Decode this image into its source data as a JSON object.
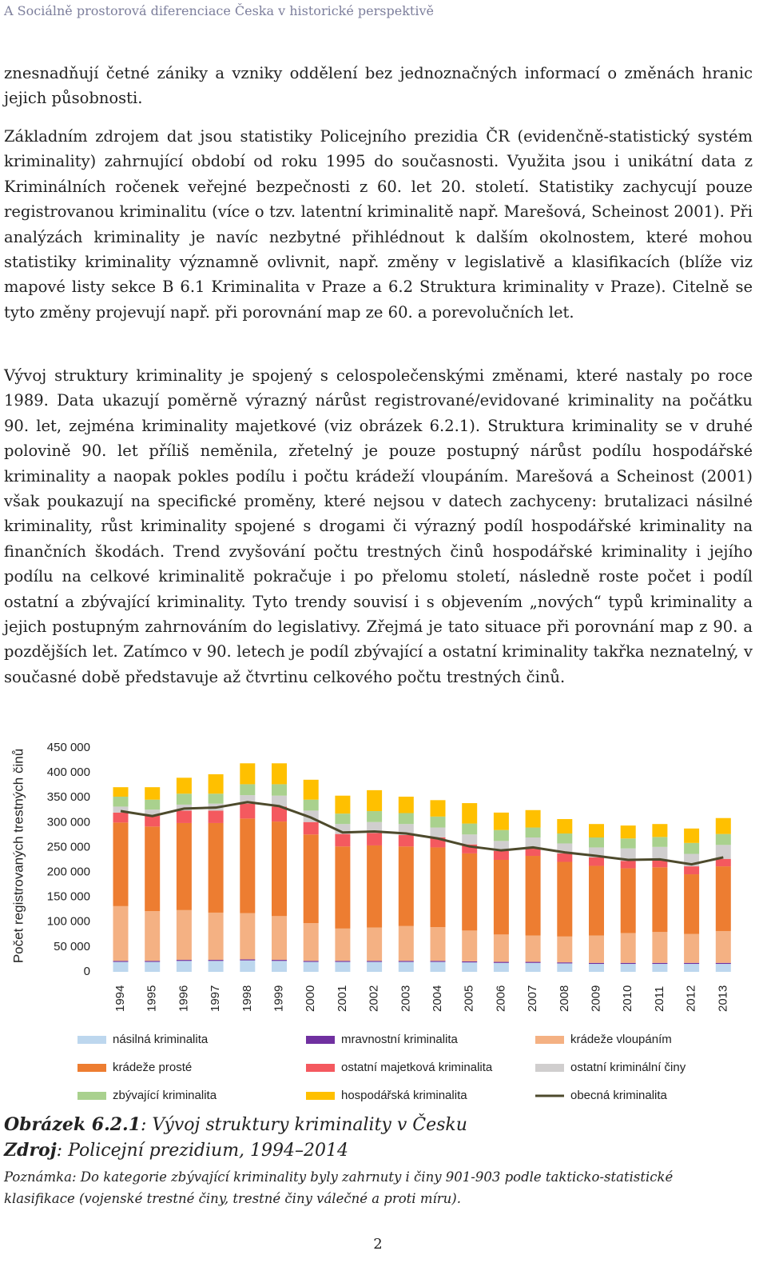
{
  "header": {
    "running_title": "A Sociálně prostorová diferenciace Česka v historické perspektivě"
  },
  "paragraphs": [
    "znesnadňují četné zániky a vzniky oddělení bez jednoznačných informací o změnách hranic jejich působnosti.",
    "Základním zdrojem dat jsou statistiky Policejního prezidia ČR (evidenčně-statistický systém kriminality) zahrnující období od roku 1995 do současnosti. Využita jsou i unikátní data z Kriminálních ročenek veřejné bezpečnosti z 60. let 20. století. Statistiky zachycují pouze registrovanou kriminalitu (více o tzv. latentní kriminalitě např. Marešová, Scheinost 2001). Při analýzách kriminality je navíc nezbytné přihlédnout k dalším okolnostem, které mohou statistiky kriminality významně ovlivnit, např. změny v legislativě a klasifikacích (blíže viz mapové listy sekce B 6.1 Kriminalita v Praze a 6.2 Struktura kriminality v Praze). Citelně se tyto změny projevují např. při porovnání map ze 60. a porevolučních let.",
    "Vývoj struktury kriminality je spojený s celospolečenskými změnami, které nastaly po roce 1989. Data ukazují poměrně výrazný nárůst registrované/evidované kriminality na počátku 90. let, zejména kriminality majetkové (viz obrázek 6.2.1). Struktura kriminality se v druhé polovině 90. let příliš neměnila, zřetelný je pouze postupný nárůst podílu hospodářské kriminality a naopak pokles podílu i počtu krádeží vloupáním. Marešová a Scheinost (2001) však poukazují na specifické proměny, které nejsou v datech zachyceny: brutalizaci násilné kriminality, růst kriminality spojené s drogami či výrazný podíl hospodářské kriminality na finančních škodách. Trend zvyšování počtu trestných činů hospodářské kriminality i jejího podílu na celkové kriminalitě pokračuje i po přelomu století, následně roste počet i podíl ostatní a zbývající kriminality. Tyto trendy souvisí i s objevením „nových“ typů kriminality a jejich postupným zahrnováním do legislativy. Zřejmá je tato situace při porovnání map z 90. a pozdějších let. Zatímco v 90. letech je podíl zbývající a ostatní kriminality takřka neznatelný, v současné době představuje až čtvrtinu celkového počtu trestných činů."
  ],
  "chart_data": {
    "type": "bar",
    "stacked": true,
    "y_label": "Počet registrovaných trestných činů",
    "categories": [
      "1994",
      "1995",
      "1996",
      "1997",
      "1998",
      "1999",
      "2000",
      "2001",
      "2002",
      "2003",
      "2004",
      "2005",
      "2006",
      "2007",
      "2008",
      "2009",
      "2010",
      "2011",
      "2012",
      "2013"
    ],
    "ylim": [
      0,
      450000
    ],
    "yticks": [
      {
        "value": 0,
        "label": "0"
      },
      {
        "value": 50000,
        "label": "50 000"
      },
      {
        "value": 100000,
        "label": "100 000"
      },
      {
        "value": 150000,
        "label": "150 000"
      },
      {
        "value": 200000,
        "label": "200 000"
      },
      {
        "value": 250000,
        "label": "250 000"
      },
      {
        "value": 300000,
        "label": "300 000"
      },
      {
        "value": 350000,
        "label": "350 000"
      },
      {
        "value": 400000,
        "label": "400 000"
      },
      {
        "value": 450000,
        "label": "450 000"
      }
    ],
    "grid": false,
    "series": [
      {
        "name": "násilná kriminalita",
        "color": "#bdd7ee",
        "values": [
          20000,
          20000,
          22000,
          22000,
          23000,
          22000,
          20000,
          20000,
          20000,
          20000,
          20000,
          19000,
          18000,
          18000,
          17000,
          16000,
          16000,
          16000,
          16000,
          16000
        ]
      },
      {
        "name": "mravnostní kriminalita",
        "color": "#7030a0",
        "values": [
          2000,
          2000,
          2000,
          2000,
          2000,
          2000,
          2000,
          2000,
          2000,
          2000,
          2000,
          2000,
          2000,
          2000,
          2000,
          2000,
          2000,
          2000,
          2000,
          2000
        ]
      },
      {
        "name": "krádeže vloupáním",
        "color": "#f4b183",
        "values": [
          110000,
          100000,
          100000,
          95000,
          93000,
          88000,
          76000,
          65000,
          67000,
          70000,
          68000,
          62000,
          55000,
          53000,
          52000,
          55000,
          60000,
          62000,
          58000,
          64000
        ]
      },
      {
        "name": "krádeže prosté",
        "color": "#ed7d31",
        "values": [
          168000,
          170000,
          175000,
          180000,
          190000,
          190000,
          178000,
          165000,
          165000,
          160000,
          160000,
          155000,
          150000,
          160000,
          150000,
          140000,
          130000,
          130000,
          120000,
          130000
        ]
      },
      {
        "name": "ostatní majetková kriminalita",
        "color": "#f4595f",
        "values": [
          20000,
          22000,
          25000,
          25000,
          30000,
          30000,
          25000,
          25000,
          25000,
          23000,
          20000,
          18000,
          18000,
          17000,
          17000,
          17000,
          15000,
          16000,
          16000,
          15000
        ]
      },
      {
        "name": "ostatní kriminální činy",
        "color": "#d0cece",
        "values": [
          12000,
          12000,
          12000,
          14000,
          17000,
          22000,
          23000,
          20000,
          22000,
          22000,
          20000,
          20000,
          20000,
          20000,
          20000,
          20000,
          25000,
          25000,
          25000,
          28000
        ]
      },
      {
        "name": "zbývající kriminalita",
        "color": "#a9d18e",
        "values": [
          20000,
          20000,
          22000,
          20000,
          22000,
          23000,
          22000,
          21000,
          22000,
          22000,
          22000,
          22000,
          22000,
          20000,
          20000,
          20000,
          20000,
          20000,
          22000,
          22000
        ]
      },
      {
        "name": "hospodářská kriminalita",
        "color": "#ffc000",
        "values": [
          19000,
          25000,
          32000,
          39000,
          42000,
          42000,
          40000,
          36000,
          42000,
          33000,
          33000,
          41000,
          35000,
          35000,
          29000,
          27000,
          26000,
          26000,
          29000,
          32000
        ]
      },
      {
        "name": "obecná kriminalita",
        "type": "line",
        "color": "#4d4a2c",
        "values": [
          323000,
          313000,
          328000,
          330000,
          341000,
          333000,
          310000,
          280000,
          282000,
          278000,
          268000,
          252000,
          244000,
          250000,
          240000,
          233000,
          225000,
          226000,
          216000,
          230000
        ]
      }
    ]
  },
  "caption": {
    "label": "Obrázek 6.2.1",
    "text": ": Vývoj struktury kriminality v Česku"
  },
  "source": {
    "label": "Zdroj",
    "text": ": Policejní prezidium, 1994–2014"
  },
  "note": "Poznámka: Do kategorie zbývající kriminality byly zahrnuty i činy 901-903 podle takticko-statistické klasifikace (vojenské trestné činy, trestné činy válečné a proti míru).",
  "page_number": "2"
}
